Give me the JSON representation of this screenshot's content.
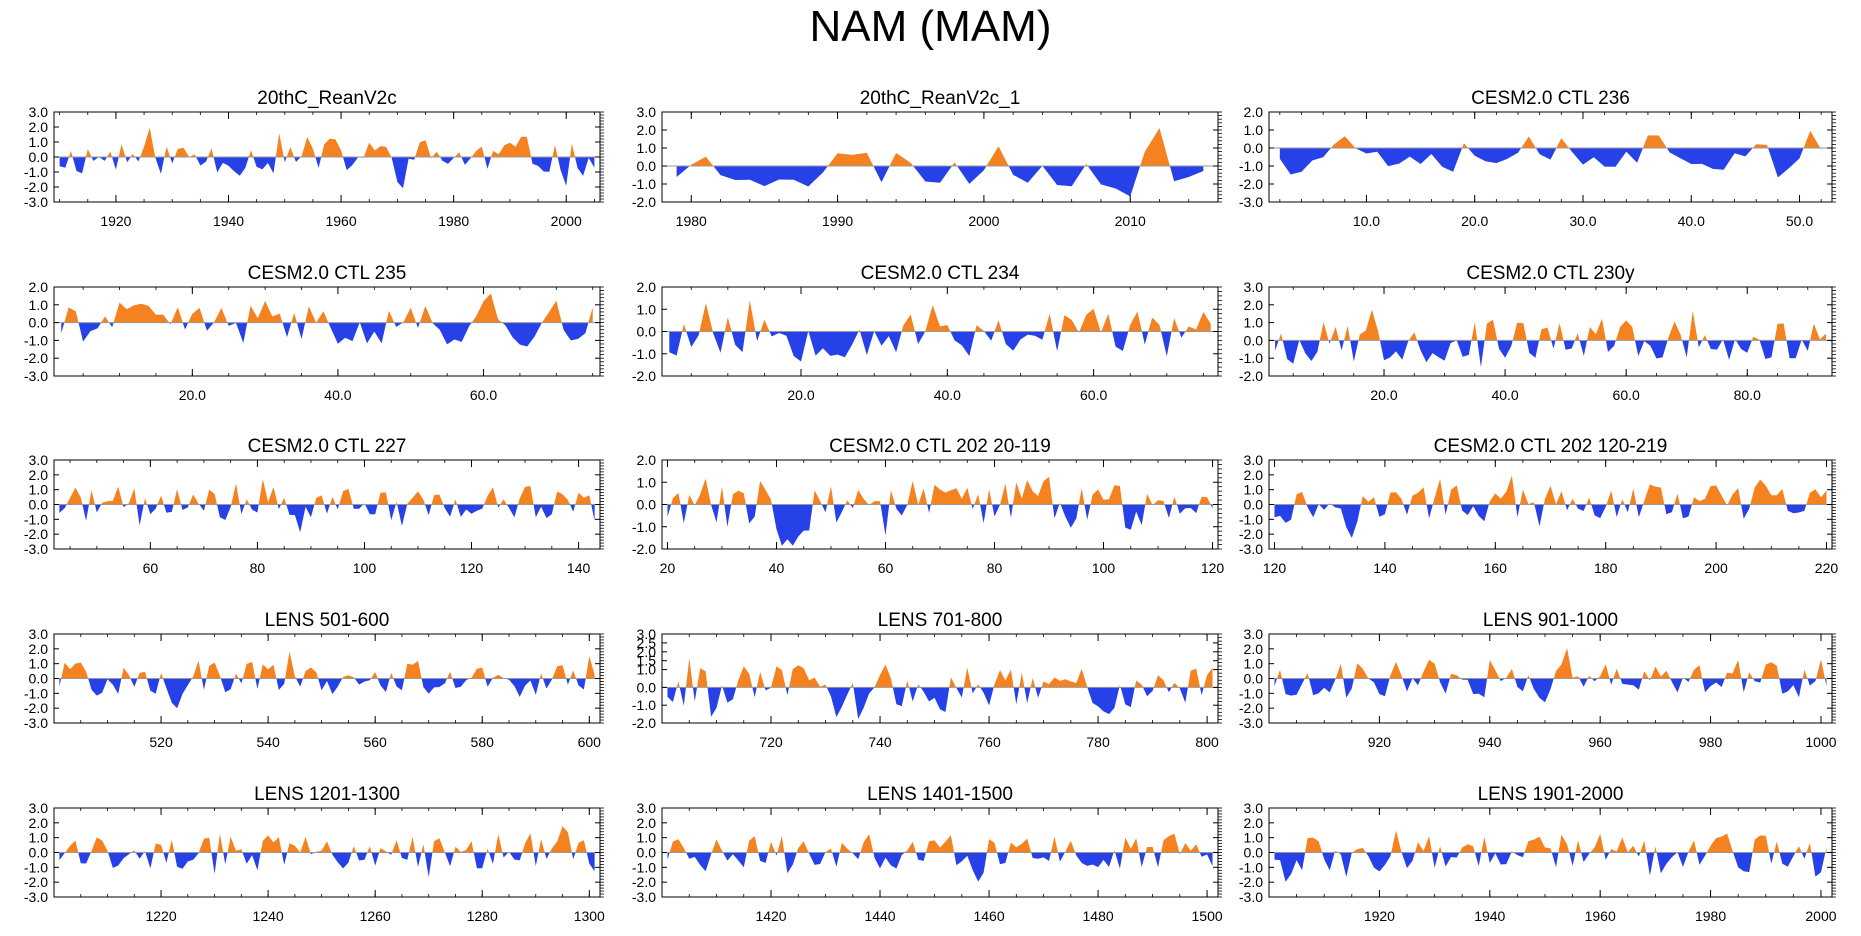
{
  "figure": {
    "title": "NAM (MAM)",
    "positive_color": "#f58220",
    "negative_color": "#2741e8",
    "axis_color": "#000000"
  },
  "chart_data": [
    {
      "type": "area",
      "title": "20thC_ReanV2c",
      "xlim": [
        1909,
        2006
      ],
      "ylim": [
        -3,
        3
      ],
      "yticks": [
        "3.0",
        "2.0",
        "1.0",
        "0.0",
        "-1.0",
        "-2.0",
        "-3.0"
      ],
      "xticks": [
        {
          "v": 1920,
          "label": "1920"
        },
        {
          "v": 1940,
          "label": "1940"
        },
        {
          "v": 1960,
          "label": "1960"
        },
        {
          "v": 1980,
          "label": "1980"
        },
        {
          "v": 2000,
          "label": "2000"
        }
      ],
      "seed": 11
    },
    {
      "type": "area",
      "title": "20thC_ReanV2c_1",
      "xlim": [
        1978,
        2016
      ],
      "ylim": [
        -2,
        3
      ],
      "yticks": [
        "3.0",
        "2.0",
        "1.0",
        "0.0",
        "-1.0",
        "-2.0"
      ],
      "xticks": [
        {
          "v": 1980,
          "label": "1980"
        },
        {
          "v": 1990,
          "label": "1990"
        },
        {
          "v": 2000,
          "label": "2000"
        },
        {
          "v": 2010,
          "label": "2010"
        }
      ],
      "seed": 23
    },
    {
      "type": "area",
      "title": "CESM2.0 CTL 236",
      "xlim": [
        1,
        53
      ],
      "ylim": [
        -3,
        2
      ],
      "yticks": [
        "2.0",
        "1.0",
        "0.0",
        "-1.0",
        "-2.0",
        "-3.0"
      ],
      "xticks": [
        {
          "v": 10,
          "label": "10.0"
        },
        {
          "v": 20,
          "label": "20.0"
        },
        {
          "v": 30,
          "label": "30.0"
        },
        {
          "v": 40,
          "label": "40.0"
        },
        {
          "v": 50,
          "label": "50.0"
        }
      ],
      "seed": 37
    },
    {
      "type": "area",
      "title": "CESM2.0 CTL 235",
      "xlim": [
        1,
        76
      ],
      "ylim": [
        -3,
        2
      ],
      "yticks": [
        "2.0",
        "1.0",
        "0.0",
        "-1.0",
        "-2.0",
        "-3.0"
      ],
      "xticks": [
        {
          "v": 20,
          "label": "20.0"
        },
        {
          "v": 40,
          "label": "40.0"
        },
        {
          "v": 60,
          "label": "60.0"
        }
      ],
      "seed": 41
    },
    {
      "type": "area",
      "title": "CESM2.0 CTL 234",
      "xlim": [
        1,
        77
      ],
      "ylim": [
        -2,
        2
      ],
      "yticks": [
        "2.0",
        "1.0",
        "0.0",
        "-1.0",
        "-2.0"
      ],
      "xticks": [
        {
          "v": 20,
          "label": "20.0"
        },
        {
          "v": 40,
          "label": "40.0"
        },
        {
          "v": 60,
          "label": "60.0"
        }
      ],
      "seed": 53
    },
    {
      "type": "area",
      "title": "CESM2.0 CTL 230y",
      "xlim": [
        1,
        94
      ],
      "ylim": [
        -2,
        3
      ],
      "yticks": [
        "3.0",
        "2.0",
        "1.0",
        "0.0",
        "-1.0",
        "-2.0"
      ],
      "xticks": [
        {
          "v": 20,
          "label": "20.0"
        },
        {
          "v": 40,
          "label": "40.0"
        },
        {
          "v": 60,
          "label": "60.0"
        },
        {
          "v": 80,
          "label": "80.0"
        }
      ],
      "seed": 67
    },
    {
      "type": "area",
      "title": "CESM2.0 CTL 227",
      "xlim": [
        42,
        144
      ],
      "ylim": [
        -3,
        3
      ],
      "yticks": [
        "3.0",
        "2.0",
        "1.0",
        "0.0",
        "-1.0",
        "-2.0",
        "-3.0"
      ],
      "xticks": [
        {
          "v": 60,
          "label": "60"
        },
        {
          "v": 80,
          "label": "80"
        },
        {
          "v": 100,
          "label": "100"
        },
        {
          "v": 120,
          "label": "120"
        },
        {
          "v": 140,
          "label": "140"
        }
      ],
      "seed": 71
    },
    {
      "type": "area",
      "title": "CESM2.0 CTL 202 20-119",
      "xlim": [
        19,
        121
      ],
      "ylim": [
        -2,
        2
      ],
      "yticks": [
        "2.0",
        "1.0",
        "0.0",
        "-1.0",
        "-2.0"
      ],
      "xticks": [
        {
          "v": 20,
          "label": "20"
        },
        {
          "v": 40,
          "label": "40"
        },
        {
          "v": 60,
          "label": "60"
        },
        {
          "v": 80,
          "label": "80"
        },
        {
          "v": 100,
          "label": "100"
        },
        {
          "v": 120,
          "label": "120"
        }
      ],
      "seed": 83
    },
    {
      "type": "area",
      "title": "CESM2.0 CTL 202 120-219",
      "xlim": [
        119,
        221
      ],
      "ylim": [
        -3,
        3
      ],
      "yticks": [
        "3.0",
        "2.0",
        "1.0",
        "0.0",
        "-1.0",
        "-2.0",
        "-3.0"
      ],
      "xticks": [
        {
          "v": 120,
          "label": "120"
        },
        {
          "v": 140,
          "label": "140"
        },
        {
          "v": 160,
          "label": "160"
        },
        {
          "v": 180,
          "label": "180"
        },
        {
          "v": 200,
          "label": "200"
        },
        {
          "v": 220,
          "label": "220"
        }
      ],
      "seed": 97
    },
    {
      "type": "area",
      "title": "LENS 501-600",
      "xlim": [
        500,
        602
      ],
      "ylim": [
        -3,
        3
      ],
      "yticks": [
        "3.0",
        "2.0",
        "1.0",
        "0.0",
        "-1.0",
        "-2.0",
        "-3.0"
      ],
      "xticks": [
        {
          "v": 520,
          "label": "520"
        },
        {
          "v": 540,
          "label": "540"
        },
        {
          "v": 560,
          "label": "560"
        },
        {
          "v": 580,
          "label": "580"
        },
        {
          "v": 600,
          "label": "600"
        }
      ],
      "seed": 101
    },
    {
      "type": "area",
      "title": "LENS 701-800",
      "xlim": [
        700,
        802
      ],
      "ylim": [
        -2,
        3
      ],
      "yticks": [
        "3.0",
        "2.5",
        "2.0",
        "1.5",
        "1.0",
        "0.0",
        "-1.0",
        "-2.0"
      ],
      "ytick_vals": [
        3,
        2.5,
        2,
        1.5,
        1,
        0,
        -1,
        -2
      ],
      "xticks": [
        {
          "v": 720,
          "label": "720"
        },
        {
          "v": 740,
          "label": "740"
        },
        {
          "v": 760,
          "label": "760"
        },
        {
          "v": 780,
          "label": "780"
        },
        {
          "v": 800,
          "label": "800"
        }
      ],
      "seed": 113
    },
    {
      "type": "area",
      "title": "LENS 901-1000",
      "xlim": [
        900,
        1002
      ],
      "ylim": [
        -3,
        3
      ],
      "yticks": [
        "3.0",
        "2.0",
        "1.0",
        "0.0",
        "-1.0",
        "-2.0",
        "-3.0"
      ],
      "xticks": [
        {
          "v": 920,
          "label": "920"
        },
        {
          "v": 940,
          "label": "940"
        },
        {
          "v": 960,
          "label": "960"
        },
        {
          "v": 980,
          "label": "980"
        },
        {
          "v": 1000,
          "label": "1000"
        }
      ],
      "seed": 127
    },
    {
      "type": "area",
      "title": "LENS 1201-1300",
      "xlim": [
        1200,
        1302
      ],
      "ylim": [
        -3,
        3
      ],
      "yticks": [
        "3.0",
        "2.0",
        "1.0",
        "0.0",
        "-1.0",
        "-2.0",
        "-3.0"
      ],
      "xticks": [
        {
          "v": 1220,
          "label": "1220"
        },
        {
          "v": 1240,
          "label": "1240"
        },
        {
          "v": 1260,
          "label": "1260"
        },
        {
          "v": 1280,
          "label": "1280"
        },
        {
          "v": 1300,
          "label": "1300"
        }
      ],
      "seed": 131
    },
    {
      "type": "area",
      "title": "LENS 1401-1500",
      "xlim": [
        1400,
        1502
      ],
      "ylim": [
        -3,
        3
      ],
      "yticks": [
        "3.0",
        "2.0",
        "1.0",
        "0.0",
        "-1.0",
        "-2.0",
        "-3.0"
      ],
      "xticks": [
        {
          "v": 1420,
          "label": "1420"
        },
        {
          "v": 1440,
          "label": "1440"
        },
        {
          "v": 1460,
          "label": "1460"
        },
        {
          "v": 1480,
          "label": "1480"
        },
        {
          "v": 1500,
          "label": "1500"
        }
      ],
      "seed": 149
    },
    {
      "type": "area",
      "title": "LENS 1901-2000",
      "xlim": [
        1900,
        2002
      ],
      "ylim": [
        -3,
        3
      ],
      "yticks": [
        "3.0",
        "2.0",
        "1.0",
        "0.0",
        "-1.0",
        "-2.0",
        "-3.0"
      ],
      "xticks": [
        {
          "v": 1920,
          "label": "1920"
        },
        {
          "v": 1940,
          "label": "1940"
        },
        {
          "v": 1960,
          "label": "1960"
        },
        {
          "v": 1980,
          "label": "1980"
        },
        {
          "v": 2000,
          "label": "2000"
        }
      ],
      "seed": 157
    }
  ]
}
